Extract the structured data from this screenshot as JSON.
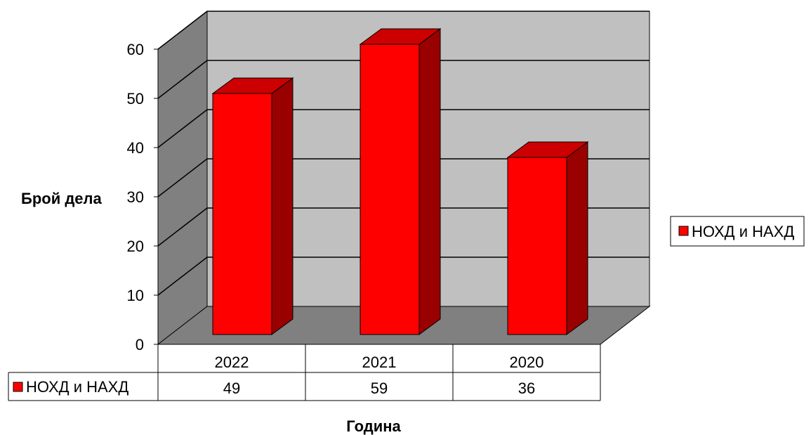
{
  "chart_data": {
    "type": "bar",
    "categories": [
      "2022",
      "2021",
      "2020"
    ],
    "series": [
      {
        "name": "НОХД и НАХД",
        "values": [
          49,
          59,
          36
        ]
      }
    ],
    "xlabel": "Година",
    "ylabel": "Брой дела",
    "ylim": [
      0,
      60
    ],
    "yticks": [
      0,
      10,
      20,
      30,
      40,
      50,
      60
    ],
    "grid": true,
    "legend": "right",
    "data_table": true,
    "colors": {
      "bar_front": "#ff0000",
      "bar_side": "#990000",
      "bar_top": "#cc0000",
      "back_wall": "#c0c0c0",
      "side_wall": "#808080",
      "floor": "#808080"
    }
  }
}
